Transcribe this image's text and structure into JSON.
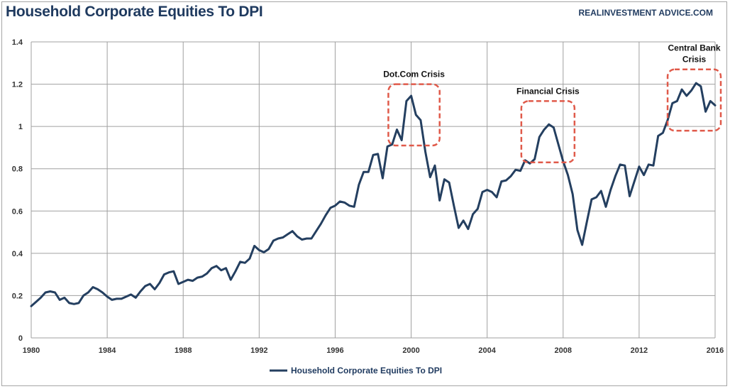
{
  "header": {
    "title": "Household Corporate Equities To DPI",
    "source": "REALINVESTMENT ADVICE.COM"
  },
  "colors": {
    "series": "#243f60",
    "grid": "#a0a0a0",
    "annotation_box": "#e05a4a",
    "title": "#1f3a5f"
  },
  "chart_data": {
    "type": "line",
    "title": "Household Corporate Equities To DPI",
    "xlabel": "",
    "ylabel": "",
    "xlim": [
      1980,
      2016
    ],
    "ylim": [
      0,
      1.4
    ],
    "grid": true,
    "legend_position": "bottom",
    "x_ticks": [
      1980,
      1984,
      1988,
      1992,
      1996,
      2000,
      2004,
      2008,
      2012,
      2016
    ],
    "x_tick_labels": [
      "1980",
      "1984",
      "1988",
      "1992",
      "1996",
      "2000",
      "2004",
      "2008",
      "2012",
      "2016"
    ],
    "y_ticks": [
      0,
      0.2,
      0.4,
      0.6,
      0.8,
      1.0,
      1.2,
      1.4
    ],
    "y_tick_labels": [
      "0",
      "0.2",
      "0.4",
      "0.6",
      "0.8",
      "1",
      "1.2",
      "1.4"
    ],
    "series": [
      {
        "name": "Household Corporate Equities To DPI",
        "x": [
          1980.0,
          1980.25,
          1980.5,
          1980.75,
          1981.0,
          1981.25,
          1981.5,
          1981.75,
          1982.0,
          1982.25,
          1982.5,
          1982.75,
          1983.0,
          1983.25,
          1983.5,
          1983.75,
          1984.0,
          1984.25,
          1984.5,
          1984.75,
          1985.0,
          1985.25,
          1985.5,
          1985.75,
          1986.0,
          1986.25,
          1986.5,
          1986.75,
          1987.0,
          1987.25,
          1987.5,
          1987.75,
          1988.0,
          1988.25,
          1988.5,
          1988.75,
          1989.0,
          1989.25,
          1989.5,
          1989.75,
          1990.0,
          1990.25,
          1990.5,
          1990.75,
          1991.0,
          1991.25,
          1991.5,
          1991.75,
          1992.0,
          1992.25,
          1992.5,
          1992.75,
          1993.0,
          1993.25,
          1993.5,
          1993.75,
          1994.0,
          1994.25,
          1994.5,
          1994.75,
          1995.0,
          1995.25,
          1995.5,
          1995.75,
          1996.0,
          1996.25,
          1996.5,
          1996.75,
          1997.0,
          1997.25,
          1997.5,
          1997.75,
          1998.0,
          1998.25,
          1998.5,
          1998.75,
          1999.0,
          1999.25,
          1999.5,
          1999.75,
          2000.0,
          2000.25,
          2000.5,
          2000.75,
          2001.0,
          2001.25,
          2001.5,
          2001.75,
          2002.0,
          2002.25,
          2002.5,
          2002.75,
          2003.0,
          2003.25,
          2003.5,
          2003.75,
          2004.0,
          2004.25,
          2004.5,
          2004.75,
          2005.0,
          2005.25,
          2005.5,
          2005.75,
          2006.0,
          2006.25,
          2006.5,
          2006.75,
          2007.0,
          2007.25,
          2007.5,
          2007.75,
          2008.0,
          2008.25,
          2008.5,
          2008.75,
          2009.0,
          2009.25,
          2009.5,
          2009.75,
          2010.0,
          2010.25,
          2010.5,
          2010.75,
          2011.0,
          2011.25,
          2011.5,
          2011.75,
          2012.0,
          2012.25,
          2012.5,
          2012.75,
          2013.0,
          2013.25,
          2013.5,
          2013.75,
          2014.0,
          2014.25,
          2014.5,
          2014.75,
          2015.0,
          2015.25,
          2015.5,
          2015.75,
          2016.0
        ],
        "values": [
          0.15,
          0.17,
          0.19,
          0.215,
          0.22,
          0.215,
          0.18,
          0.19,
          0.165,
          0.16,
          0.165,
          0.2,
          0.215,
          0.24,
          0.23,
          0.215,
          0.195,
          0.18,
          0.185,
          0.185,
          0.195,
          0.205,
          0.19,
          0.22,
          0.245,
          0.255,
          0.23,
          0.26,
          0.3,
          0.31,
          0.315,
          0.255,
          0.265,
          0.275,
          0.27,
          0.285,
          0.29,
          0.305,
          0.33,
          0.34,
          0.32,
          0.33,
          0.275,
          0.315,
          0.36,
          0.355,
          0.375,
          0.435,
          0.415,
          0.405,
          0.42,
          0.46,
          0.47,
          0.475,
          0.49,
          0.505,
          0.48,
          0.465,
          0.47,
          0.47,
          0.505,
          0.54,
          0.58,
          0.615,
          0.625,
          0.645,
          0.64,
          0.625,
          0.62,
          0.725,
          0.785,
          0.785,
          0.865,
          0.87,
          0.755,
          0.905,
          0.915,
          0.985,
          0.935,
          1.12,
          1.145,
          1.055,
          1.03,
          0.88,
          0.76,
          0.815,
          0.65,
          0.75,
          0.735,
          0.625,
          0.52,
          0.555,
          0.515,
          0.585,
          0.61,
          0.69,
          0.7,
          0.69,
          0.665,
          0.74,
          0.745,
          0.765,
          0.795,
          0.79,
          0.84,
          0.825,
          0.845,
          0.95,
          0.985,
          1.01,
          0.995,
          0.915,
          0.835,
          0.77,
          0.68,
          0.51,
          0.44,
          0.55,
          0.655,
          0.665,
          0.695,
          0.62,
          0.7,
          0.765,
          0.82,
          0.815,
          0.67,
          0.74,
          0.81,
          0.77,
          0.82,
          0.815,
          0.955,
          0.97,
          1.03,
          1.11,
          1.12,
          1.175,
          1.145,
          1.17,
          1.205,
          1.19,
          1.07,
          1.12,
          1.1
        ]
      }
    ],
    "annotations": [
      {
        "label_lines": [
          "Dot.Com Crisis"
        ],
        "box_x": [
          1998.8,
          2001.5
        ],
        "box_y": [
          0.91,
          1.2
        ]
      },
      {
        "label_lines": [
          "Financial Crisis"
        ],
        "box_x": [
          2005.8,
          2008.6
        ],
        "box_y": [
          0.83,
          1.12
        ]
      },
      {
        "label_lines": [
          "Central Bank",
          "Crisis"
        ],
        "box_x": [
          2013.5,
          2016.3
        ],
        "box_y": [
          0.98,
          1.27
        ]
      }
    ]
  }
}
